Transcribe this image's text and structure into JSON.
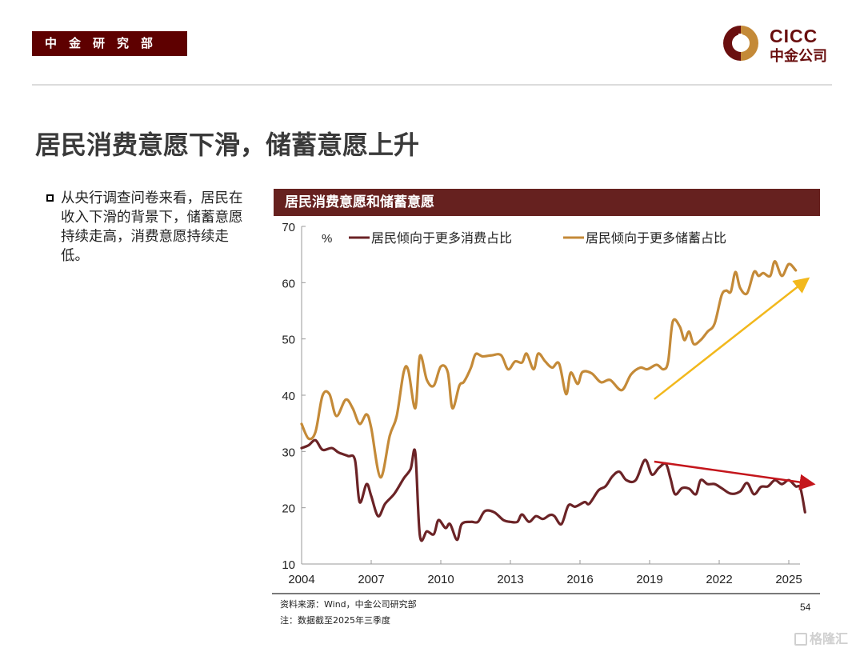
{
  "header": {
    "department": "中金研究部",
    "logo": {
      "en": "CICC",
      "cn": "中金公司"
    }
  },
  "title": "居民消费意愿下滑，储蓄意愿上升",
  "bullet": "从央行调查问卷来看，居民在收入下滑的背景下，储蓄意愿持续走高，消费意愿持续走低。",
  "chart_header": "居民消费意愿和储蓄意愿",
  "footer": {
    "source": "资料来源：Wind，中金公司研究部",
    "note": "注：数据截至2025年三季度",
    "page": "54",
    "watermark": "格隆汇"
  },
  "colors": {
    "brand": "#5e0000",
    "consumption": "#6b2326",
    "savings": "#c48a38",
    "up_arrow": "#f2b81c",
    "down_arrow": "#c4161c"
  },
  "chart_data": {
    "type": "line",
    "title": "居民消费意愿和储蓄意愿",
    "ylabel": "%",
    "ylim": [
      10,
      70
    ],
    "yticks": [
      "10",
      "20",
      "30",
      "40",
      "50",
      "60",
      "70"
    ],
    "xlim": [
      2004,
      2025.85
    ],
    "xticks": [
      "2004",
      "2007",
      "2010",
      "2013",
      "2016",
      "2019",
      "2022",
      "2025"
    ],
    "legend_position": "top",
    "series": [
      {
        "name": "居民倾向于更多消费占比",
        "color": "#6b2326",
        "x": [
          2004.0,
          2004.3,
          2004.6,
          2004.9,
          2005.3,
          2005.6,
          2006.0,
          2006.3,
          2006.5,
          2006.8,
          2007.0,
          2007.3,
          2007.6,
          2008.0,
          2008.4,
          2008.7,
          2008.9,
          2009.1,
          2009.4,
          2009.7,
          2009.9,
          2010.2,
          2010.4,
          2010.7,
          2010.9,
          2011.3,
          2011.6,
          2011.9,
          2012.3,
          2012.7,
          2013.0,
          2013.3,
          2013.5,
          2013.8,
          2014.1,
          2014.4,
          2014.7,
          2014.9,
          2015.2,
          2015.5,
          2015.8,
          2016.2,
          2016.4,
          2016.8,
          2017.1,
          2017.4,
          2017.7,
          2018.0,
          2018.4,
          2018.8,
          2019.1,
          2019.4,
          2019.7,
          2019.9,
          2020.1,
          2020.4,
          2020.7,
          2021.0,
          2021.2,
          2021.5,
          2021.8,
          2022.1,
          2022.5,
          2022.9,
          2023.2,
          2023.5,
          2023.8,
          2024.1,
          2024.4,
          2024.7,
          2025.0,
          2025.3,
          2025.5,
          2025.7
        ],
        "values": [
          30.6,
          31.1,
          32.0,
          30.3,
          30.6,
          29.8,
          29.2,
          28.5,
          21.0,
          24.2,
          22.1,
          18.5,
          20.7,
          22.5,
          25.2,
          26.9,
          29.8,
          15.0,
          15.8,
          15.3,
          17.8,
          16.4,
          17.1,
          14.3,
          17.1,
          17.5,
          17.5,
          19.4,
          19.2,
          17.8,
          17.5,
          17.5,
          18.8,
          17.5,
          18.5,
          18.0,
          18.7,
          18.5,
          17.1,
          20.4,
          20.2,
          21.0,
          20.7,
          23.1,
          23.8,
          25.6,
          26.4,
          24.9,
          24.9,
          28.5,
          25.9,
          27.1,
          27.8,
          25.2,
          22.4,
          23.5,
          23.4,
          22.4,
          24.9,
          24.2,
          24.2,
          23.5,
          22.5,
          22.9,
          24.4,
          22.4,
          23.7,
          23.8,
          24.9,
          24.2,
          24.9,
          23.8,
          23.5,
          19.2
        ]
      },
      {
        "name": "居民倾向于更多储蓄占比",
        "color": "#c48a38",
        "x": [
          2004.0,
          2004.3,
          2004.6,
          2004.9,
          2005.2,
          2005.5,
          2005.9,
          2006.2,
          2006.5,
          2006.8,
          2007.0,
          2007.4,
          2007.8,
          2008.1,
          2008.4,
          2008.6,
          2008.9,
          2009.1,
          2009.4,
          2009.7,
          2010.0,
          2010.3,
          2010.5,
          2010.8,
          2011.0,
          2011.3,
          2011.5,
          2011.8,
          2012.2,
          2012.6,
          2012.9,
          2013.2,
          2013.5,
          2013.7,
          2014.0,
          2014.2,
          2014.5,
          2014.8,
          2015.1,
          2015.4,
          2015.6,
          2015.9,
          2016.1,
          2016.5,
          2016.9,
          2017.3,
          2017.8,
          2018.2,
          2018.6,
          2018.9,
          2019.3,
          2019.6,
          2019.8,
          2020.0,
          2020.3,
          2020.5,
          2020.7,
          2020.9,
          2021.2,
          2021.5,
          2021.8,
          2022.1,
          2022.3,
          2022.5,
          2022.7,
          2022.9,
          2023.2,
          2023.5,
          2023.7,
          2023.9,
          2024.2,
          2024.4,
          2024.7,
          2025.0,
          2025.3
        ],
        "values": [
          34.9,
          32.3,
          33.5,
          39.9,
          40.2,
          36.3,
          39.2,
          37.7,
          34.9,
          36.6,
          34.2,
          25.4,
          32.8,
          36.3,
          44.1,
          44.4,
          37.7,
          47.0,
          42.7,
          41.7,
          45.1,
          44.1,
          37.7,
          41.7,
          42.4,
          44.9,
          47.3,
          46.9,
          47.1,
          47.1,
          44.6,
          46.0,
          45.8,
          47.4,
          44.6,
          47.4,
          46.0,
          44.9,
          45.6,
          40.2,
          44.0,
          42.0,
          44.1,
          43.9,
          42.3,
          42.7,
          40.9,
          43.7,
          44.9,
          44.6,
          45.4,
          44.6,
          46.0,
          53.1,
          52.2,
          49.8,
          51.3,
          49.1,
          49.8,
          51.3,
          52.7,
          57.7,
          58.6,
          58.4,
          61.9,
          59.1,
          58.1,
          61.9,
          61.2,
          61.7,
          61.2,
          63.8,
          61.2,
          63.3,
          62.2
        ]
      }
    ],
    "annotations": [
      {
        "type": "arrow",
        "label": "",
        "from": [
          2019.2,
          39.3
        ],
        "to": [
          2025.7,
          60.3
        ],
        "color": "#f2b81c"
      },
      {
        "type": "arrow",
        "label": "",
        "from": [
          2019.2,
          28.2
        ],
        "to": [
          2025.9,
          24.3
        ],
        "color": "#c4161c"
      }
    ]
  }
}
